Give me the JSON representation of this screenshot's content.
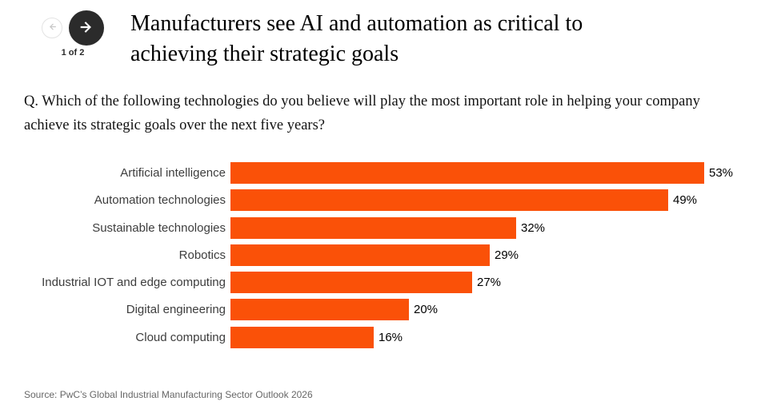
{
  "pagination": {
    "label": "1 of 2",
    "prev_icon": "arrow-left-icon",
    "next_icon": "arrow-right-icon"
  },
  "header": {
    "title_lines": [
      "Manufacturers see AI and automation as critical to",
      "achieving their strategic goals"
    ]
  },
  "question": {
    "text": "Q. Which of the following technologies do you believe will play the most important role in helping your company achieve its strategic goals over the next five years?"
  },
  "chart_data": {
    "type": "bar",
    "orientation": "horizontal",
    "title": "",
    "xlabel": "",
    "ylabel": "",
    "categories": [
      "Artificial intelligence",
      "Automation technologies",
      "Sustainable technologies",
      "Robotics",
      "Industrial IOT and edge computing",
      "Digital engineering",
      "Cloud computing"
    ],
    "values": [
      53,
      49,
      32,
      29,
      27,
      20,
      16
    ],
    "value_labels": [
      "53%",
      "49%",
      "32%",
      "29%",
      "27%",
      "20%",
      "16%"
    ],
    "value_suffix": "%",
    "bar_color": "#FA5108",
    "xlim": [
      0,
      55
    ],
    "grid": false,
    "legend": false
  },
  "footer": {
    "source": "Source: PwC’s Global Industrial Manufacturing Sector Outlook 2026"
  },
  "colors": {
    "accent_orange": "#FA5108",
    "nav_button_dark": "#2b2b2b",
    "nav_disabled_border": "#e3e3e3",
    "nav_disabled_arrow": "#c7c7c7",
    "source_text": "#676767"
  }
}
